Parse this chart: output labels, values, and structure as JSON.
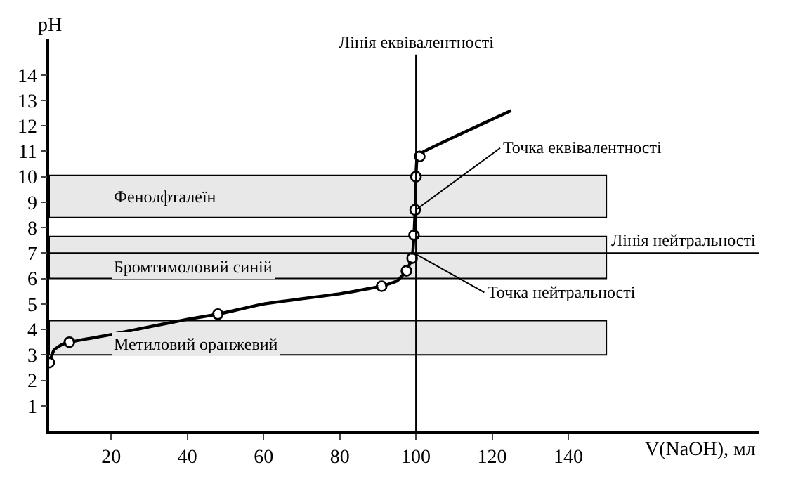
{
  "chart_data": {
    "type": "line",
    "xlabel": "V(NaOH), мл",
    "ylabel": "pH",
    "xlim": [
      3.7,
      190
    ],
    "ylim": [
      0,
      15.4
    ],
    "xticks": [
      20,
      40,
      60,
      80,
      100,
      120,
      140
    ],
    "yticks": [
      1,
      2,
      3,
      4,
      5,
      6,
      7,
      8,
      9,
      10,
      11,
      12,
      13,
      14
    ],
    "grid": false,
    "series": [
      {
        "marker": "none",
        "color": "#000000",
        "x": [
          3.7,
          5,
          7,
          9,
          20,
          30,
          40,
          48,
          60,
          80,
          91,
          95,
          97.5,
          99,
          99.5,
          99.8,
          100,
          100.3,
          101,
          125
        ],
        "values": [
          2.7,
          3.2,
          3.4,
          3.5,
          3.8,
          4.1,
          4.4,
          4.6,
          5.0,
          5.4,
          5.7,
          5.9,
          6.3,
          6.8,
          7.7,
          8.7,
          10.0,
          10.7,
          10.9,
          12.6
        ]
      },
      {
        "type": "scatter",
        "marker": "circle",
        "color": "#000000",
        "x": [
          3.7,
          9,
          48,
          91,
          97.5,
          99,
          99.5,
          99.8,
          100,
          101
        ],
        "values": [
          2.7,
          3.5,
          4.6,
          5.7,
          6.3,
          6.8,
          7.7,
          8.7,
          10.0,
          10.8
        ]
      }
    ],
    "bands": [
      {
        "axis": "y",
        "from": 8.4,
        "to": 10.05,
        "label": "Фенолфталеїн",
        "color": "#e8e8e8"
      },
      {
        "axis": "y",
        "from": 6.0,
        "to": 7.65,
        "label": "Бромтимоловий синій",
        "color": "#e8e8e8"
      },
      {
        "axis": "y",
        "from": 3.0,
        "to": 4.35,
        "label": "Метиловий оранжевий",
        "color": "#e8e8e8"
      }
    ],
    "ref_lines": [
      {
        "axis": "x",
        "value": 100,
        "label": "Лінія еквівалентності",
        "color": "#000000"
      },
      {
        "axis": "y",
        "value": 7.0,
        "label": "Лінія нейтральності",
        "color": "#000000"
      }
    ],
    "annotations": [
      {
        "text": "Точка еквівалентності",
        "x": 100,
        "y": 8.7
      },
      {
        "text": "Точка нейтральності",
        "x": 99.5,
        "y": 7.0
      }
    ]
  }
}
